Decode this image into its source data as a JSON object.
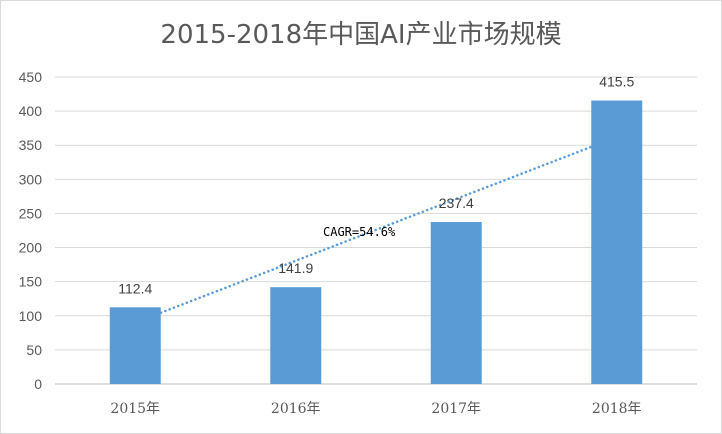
{
  "chart_data": {
    "type": "bar",
    "title": "2015-2018年中国AI产业市场规模",
    "categories": [
      "2015年",
      "2016年",
      "2017年",
      "2018年"
    ],
    "values": [
      112.4,
      141.9,
      237.4,
      415.5
    ],
    "data_labels": [
      "112.4",
      "141.9",
      "237.4",
      "415.5"
    ],
    "ylim": [
      0,
      450
    ],
    "yticks": [
      0,
      50,
      100,
      150,
      200,
      250,
      300,
      350,
      400,
      450
    ],
    "grid": true,
    "legend": "none",
    "bar_color": "#5b9bd5",
    "trendline": {
      "style": "dotted",
      "color": "#5b9bd5",
      "from_value": 90,
      "to_value": 362
    },
    "annotation": "CAGR=54.6%"
  }
}
